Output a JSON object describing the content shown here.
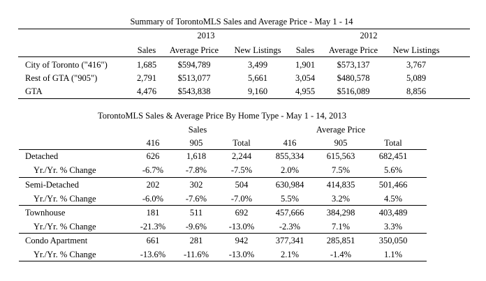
{
  "summary": {
    "title": "Summary of TorontoMLS Sales and Average Price - May 1 - 14",
    "year_a": "2013",
    "year_b": "2012",
    "headers": [
      "Sales",
      "Average Price",
      "New Listings",
      "Sales",
      "Average Price",
      "New Listings"
    ],
    "rows": [
      {
        "label": "City of Toronto (\"416\")",
        "cells": [
          "1,685",
          "$594,789",
          "3,499",
          "1,901",
          "$573,137",
          "3,767"
        ]
      },
      {
        "label": "Rest of GTA (\"905\")",
        "cells": [
          "2,791",
          "$513,077",
          "5,661",
          "3,054",
          "$480,578",
          "5,089"
        ]
      },
      {
        "label": "GTA",
        "cells": [
          "4,476",
          "$543,838",
          "9,160",
          "4,955",
          "$516,089",
          "8,856"
        ]
      }
    ]
  },
  "hometype": {
    "title": "TorontoMLS Sales & Average Price  By Home Type - May 1 - 14, 2013",
    "group_sales": "Sales",
    "group_price": "Average Price",
    "headers": [
      "416",
      "905",
      "Total",
      "416",
      "905",
      "Total"
    ],
    "rows": [
      {
        "label": "Detached",
        "cells": [
          "626",
          "1,618",
          "2,244",
          "855,334",
          "615,563",
          "682,451"
        ]
      },
      {
        "label": "Yr./Yr. % Change",
        "cells": [
          "-6.7%",
          "-7.8%",
          "-7.5%",
          "2.0%",
          "7.5%",
          "5.6%"
        ]
      },
      {
        "label": "Semi-Detached",
        "cells": [
          "202",
          "302",
          "504",
          "630,984",
          "414,835",
          "501,466"
        ]
      },
      {
        "label": "Yr./Yr. % Change",
        "cells": [
          "-6.0%",
          "-7.6%",
          "-7.0%",
          "5.5%",
          "3.2%",
          "4.5%"
        ]
      },
      {
        "label": "Townhouse",
        "cells": [
          "181",
          "511",
          "692",
          "457,666",
          "384,298",
          "403,489"
        ]
      },
      {
        "label": "Yr./Yr. % Change",
        "cells": [
          "-21.3%",
          "-9.6%",
          "-13.0%",
          "-2.3%",
          "7.1%",
          "3.3%"
        ]
      },
      {
        "label": "Condo Apartment",
        "cells": [
          "661",
          "281",
          "942",
          "377,341",
          "285,851",
          "350,050"
        ]
      },
      {
        "label": "Yr./Yr. % Change",
        "cells": [
          "-13.6%",
          "-11.6%",
          "-13.0%",
          "2.1%",
          "-1.4%",
          "1.1%"
        ]
      }
    ]
  }
}
